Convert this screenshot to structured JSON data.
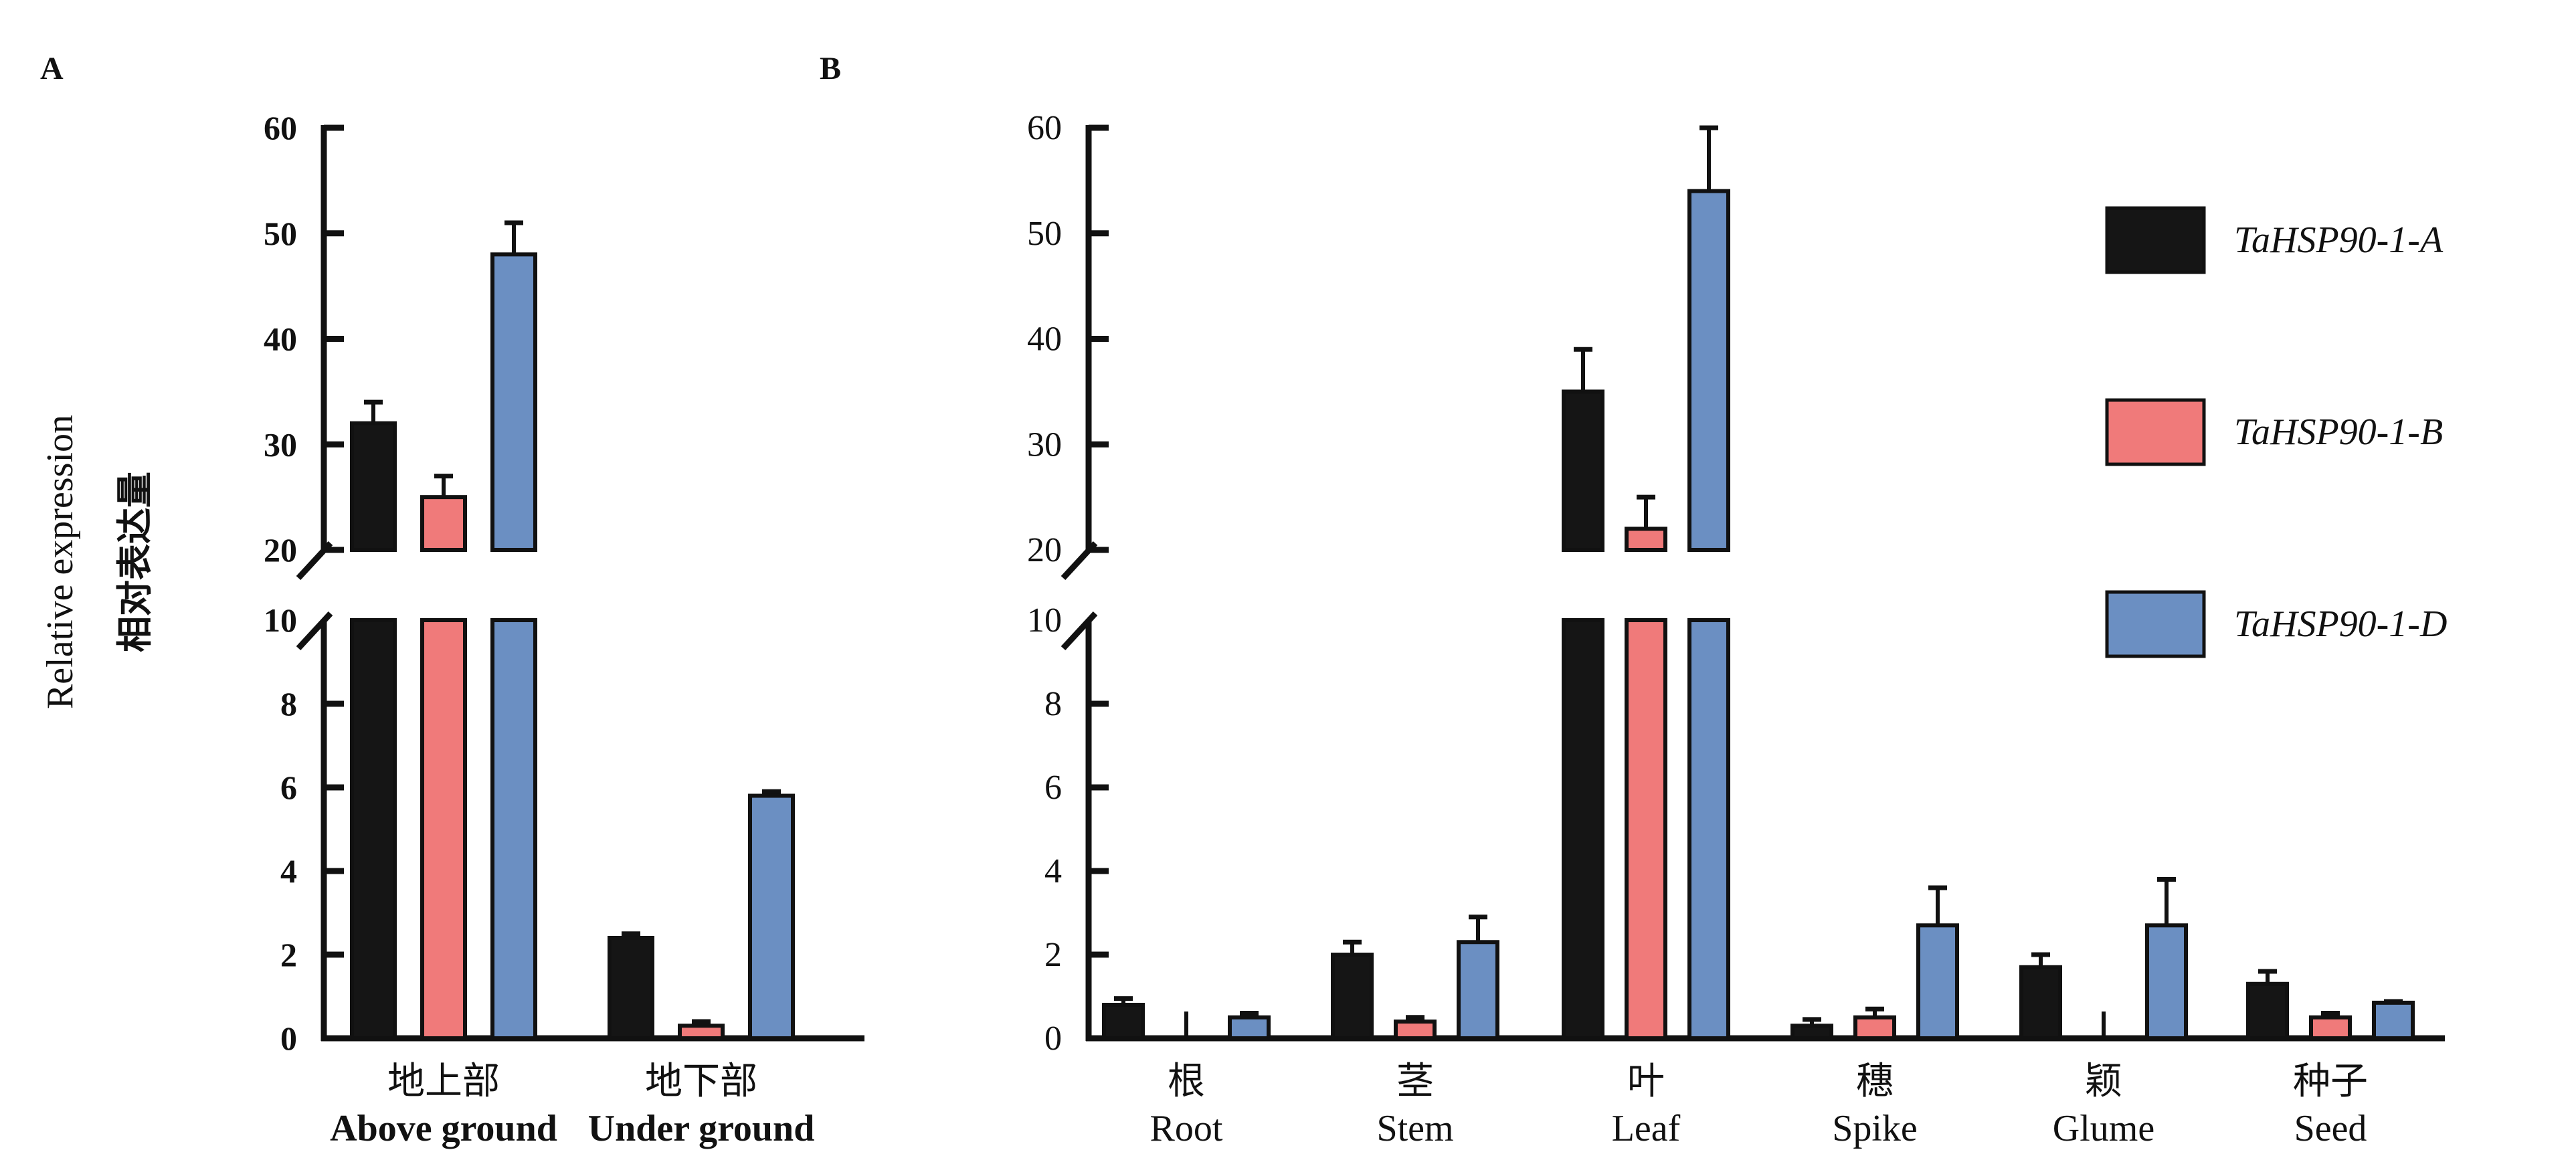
{
  "chart_data": [
    {
      "type": "bar",
      "panel_label": "A",
      "ylabel": "Relative expression",
      "ylabel_cn": "相对表达量",
      "y_axis": "broken",
      "ylim_lower": [
        0,
        10
      ],
      "ylim_upper": [
        20,
        60
      ],
      "yticks_lower": [
        "0",
        "2",
        "4",
        "6",
        "8",
        "10"
      ],
      "yticks_upper": [
        "20",
        "30",
        "40",
        "50",
        "60"
      ],
      "categories": [
        {
          "cn": "地上部",
          "en": "Above ground"
        },
        {
          "cn": "地下部",
          "en": "Under ground"
        }
      ],
      "series": [
        {
          "name": "TaHSP90-1-A",
          "color": "#151515",
          "values": [
            32,
            2.4
          ],
          "errors": [
            2,
            0.1
          ]
        },
        {
          "name": "TaHSP90-1-B",
          "color": "#f07a7a",
          "values": [
            25,
            0.3
          ],
          "errors": [
            2,
            0.1
          ]
        },
        {
          "name": "TaHSP90-1-D",
          "color": "#6b8fc2",
          "values": [
            48,
            5.8
          ],
          "errors": [
            3,
            0.1
          ]
        }
      ]
    },
    {
      "type": "bar",
      "panel_label": "B",
      "y_axis": "broken",
      "ylim_lower": [
        0,
        10
      ],
      "ylim_upper": [
        20,
        60
      ],
      "yticks_lower": [
        "0",
        "2",
        "4",
        "6",
        "8",
        "10"
      ],
      "yticks_upper": [
        "20",
        "30",
        "40",
        "50",
        "60"
      ],
      "legend_position": "top-right",
      "categories": [
        {
          "cn": "根",
          "en": "Root"
        },
        {
          "cn": "茎",
          "en": "Stem"
        },
        {
          "cn": "叶",
          "en": "Leaf"
        },
        {
          "cn": "穗",
          "en": "Spike"
        },
        {
          "cn": "颖",
          "en": "Glume"
        },
        {
          "cn": "种子",
          "en": "Seed"
        }
      ],
      "series": [
        {
          "name": "TaHSP90-1-A",
          "color": "#151515",
          "values": [
            0.8,
            2.0,
            35,
            0.3,
            1.7,
            1.3
          ],
          "errors": [
            0.15,
            0.3,
            4,
            0.15,
            0.3,
            0.3
          ]
        },
        {
          "name": "TaHSP90-1-B",
          "color": "#f07a7a",
          "values": [
            0,
            0.4,
            22,
            0.5,
            0,
            0.5
          ],
          "errors": [
            0,
            0.1,
            3,
            0.2,
            0,
            0.1
          ]
        },
        {
          "name": "TaHSP90-1-D",
          "color": "#6b8fc2",
          "values": [
            0.5,
            2.3,
            54,
            2.7,
            2.7,
            0.85
          ],
          "errors": [
            0.1,
            0.6,
            6,
            0.9,
            1.1,
            0.03
          ]
        }
      ]
    }
  ]
}
